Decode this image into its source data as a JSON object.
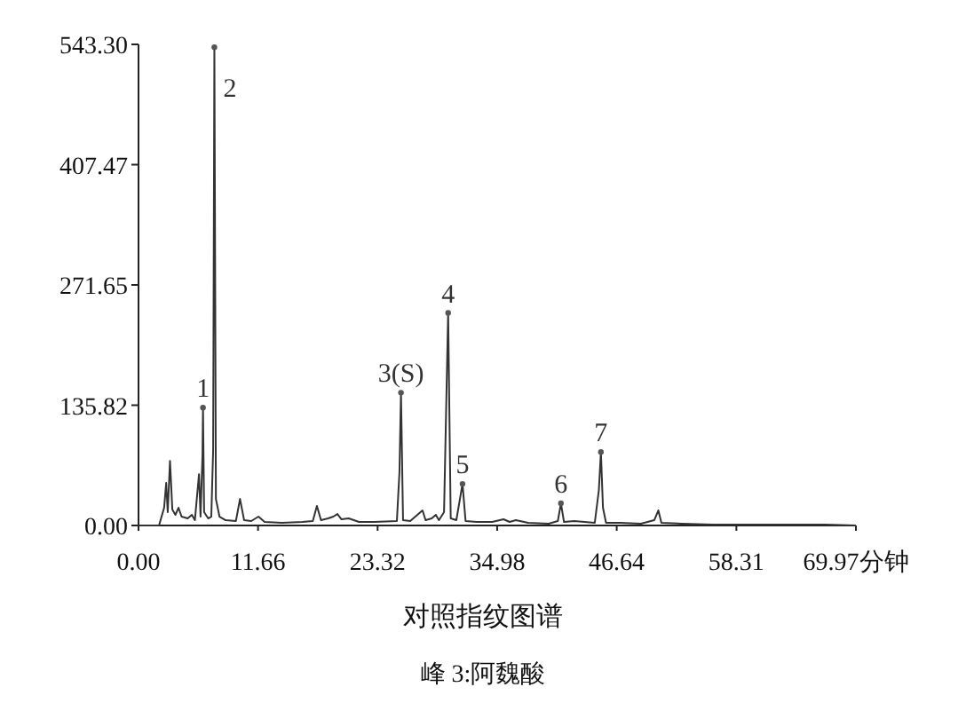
{
  "chart_data": {
    "type": "line",
    "title": "对照指纹图谱",
    "annotations": [
      {
        "text": "1",
        "x": 6.29,
        "y": 133
      },
      {
        "text": "2",
        "x": 7.4,
        "y": 540
      },
      {
        "text": "3(S)",
        "x": 25.6,
        "y": 150
      },
      {
        "text": "4",
        "x": 30.2,
        "y": 240
      },
      {
        "text": "5",
        "x": 31.6,
        "y": 47
      },
      {
        "text": "6",
        "x": 41.2,
        "y": 25
      },
      {
        "text": "7",
        "x": 45.1,
        "y": 83
      },
      "峰 3:阿魏酸"
    ],
    "x": [
      0,
      2.0,
      2.5,
      2.7,
      2.85,
      3.07,
      3.3,
      3.6,
      3.9,
      4.2,
      4.8,
      5.2,
      5.5,
      5.9,
      6.05,
      6.24,
      6.29,
      6.4,
      6.8,
      7.1,
      7.28,
      7.4,
      7.55,
      7.9,
      8.5,
      9.5,
      9.9,
      10.3,
      11.0,
      11.7,
      12.3,
      14,
      16,
      17.0,
      17.4,
      17.8,
      18.5,
      19.0,
      19.4,
      19.8,
      20.5,
      21.5,
      23,
      25.2,
      25.45,
      25.6,
      25.8,
      26.5,
      27.7,
      28.0,
      28.6,
      29.0,
      29.3,
      29.8,
      30.2,
      30.45,
      31.0,
      31.6,
      31.9,
      33,
      34.5,
      35.6,
      36.2,
      36.8,
      38,
      40,
      40.9,
      41.2,
      41.5,
      42.5,
      43.5,
      44.5,
      44.9,
      45.1,
      45.3,
      45.6,
      47,
      49,
      50.3,
      50.7,
      51.0,
      53,
      56,
      60,
      67,
      69.97
    ],
    "values": [
      0,
      0,
      20,
      48,
      15,
      73,
      18,
      12,
      20,
      10,
      8,
      12,
      6,
      58,
      10,
      80,
      133,
      15,
      8,
      10,
      85,
      540,
      30,
      10,
      6,
      5,
      30,
      6,
      5,
      10,
      4,
      3,
      4,
      5,
      22,
      6,
      8,
      10,
      13,
      7,
      8,
      4,
      4,
      5,
      60,
      150,
      6,
      5,
      17,
      6,
      8,
      12,
      6,
      15,
      240,
      8,
      6,
      47,
      5,
      4,
      4,
      7,
      4,
      6,
      3,
      2,
      5,
      25,
      4,
      5,
      4,
      3,
      40,
      83,
      20,
      3,
      3,
      2,
      6,
      17,
      3,
      2,
      1,
      1,
      1,
      0
    ],
    "color": "#333333",
    "xlim": [
      0,
      69.97
    ],
    "ylim": [
      0,
      543.3
    ],
    "xticks": [
      {
        "value": 0,
        "label": "0.00"
      },
      {
        "value": 11.66,
        "label": "11.66"
      },
      {
        "value": 23.32,
        "label": "23.32"
      },
      {
        "value": 34.98,
        "label": "34.98"
      },
      {
        "value": 46.64,
        "label": "46.64"
      },
      {
        "value": 58.31,
        "label": "58.31"
      },
      {
        "value": 69.97,
        "label": "69.97分钟"
      }
    ],
    "yticks": [
      {
        "value": 0,
        "label": "0.00"
      },
      {
        "value": 135.82,
        "label": "135.82"
      },
      {
        "value": 271.65,
        "label": "271.65"
      },
      {
        "value": 407.47,
        "label": "407.47"
      },
      {
        "value": 543.3,
        "label": "543.30"
      }
    ]
  }
}
